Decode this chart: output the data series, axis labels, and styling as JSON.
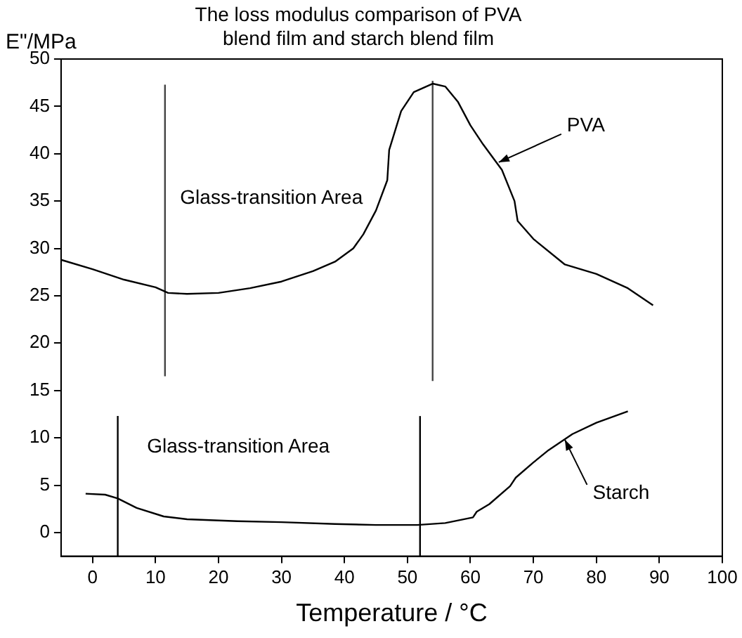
{
  "chart_data": {
    "type": "line",
    "title": "The loss modulus comparison of PVA blend film and starch blend film",
    "xlabel": "Temperature / °C",
    "ylabel": "E\"/MPa",
    "xlim": [
      -5,
      100
    ],
    "xticks": [
      0,
      10,
      20,
      30,
      40,
      50,
      60,
      70,
      80,
      90,
      100
    ],
    "ylim": [
      -2.5,
      50
    ],
    "yticks": [
      0,
      5,
      10,
      15,
      20,
      25,
      30,
      35,
      40,
      45,
      50
    ],
    "marker": "none",
    "line_style": "solid",
    "series": [
      {
        "type": "line",
        "color": "#000000",
        "x": [
          -5,
          0,
          5,
          10,
          12,
          15,
          20,
          25,
          30,
          35,
          38.5,
          41.4,
          43,
          45,
          46.8,
          47.1,
          49,
          51,
          54,
          56,
          58,
          60,
          62,
          65,
          67,
          67.5,
          70,
          75,
          80,
          85,
          89
        ],
        "values": [
          28.8,
          27.8,
          26.7,
          25.9,
          25.3,
          25.2,
          25.3,
          25.8,
          26.5,
          27.6,
          28.6,
          30.0,
          31.5,
          34,
          37.2,
          40.4,
          44.5,
          46.5,
          47.4,
          47.1,
          45.5,
          43,
          41,
          38.3,
          35,
          32.9,
          31,
          28.3,
          27.3,
          25.8,
          24
        ]
      },
      {
        "type": "line",
        "color": "#000000",
        "x": [
          -1.1,
          2,
          4,
          7,
          11.3,
          15,
          23,
          30,
          38.5,
          45,
          51.6,
          56,
          60.4,
          61,
          63,
          66.3,
          67.2,
          70,
          72.4,
          76.2,
          80,
          85
        ],
        "values": [
          4.1,
          4.0,
          3.6,
          2.6,
          1.7,
          1.4,
          1.2,
          1.1,
          0.9,
          0.8,
          0.8,
          1.0,
          1.6,
          2.2,
          3.0,
          4.9,
          5.8,
          7.4,
          8.7,
          10.4,
          11.6,
          12.8
        ]
      },
      {
        "type": "line",
        "color": "#444444",
        "x": [
          11.5,
          11.5
        ],
        "values": [
          16.5,
          47.3
        ]
      },
      {
        "type": "line",
        "color": "#444444",
        "x": [
          54,
          54
        ],
        "values": [
          16,
          47.7
        ]
      },
      {
        "type": "line",
        "color": "#000000",
        "x": [
          4,
          4
        ],
        "values": [
          -2.5,
          12.3
        ]
      },
      {
        "type": "line",
        "color": "#000000",
        "x": [
          52,
          52
        ],
        "values": [
          -2.5,
          12.3
        ]
      }
    ],
    "annotations": [
      "Glass-transition Area",
      "Glass-transition Area",
      {
        "text": "PVA",
        "x": 64.5,
        "y": 39.1
      },
      {
        "text": "Starch",
        "x": 75,
        "y": 9.8
      }
    ]
  }
}
